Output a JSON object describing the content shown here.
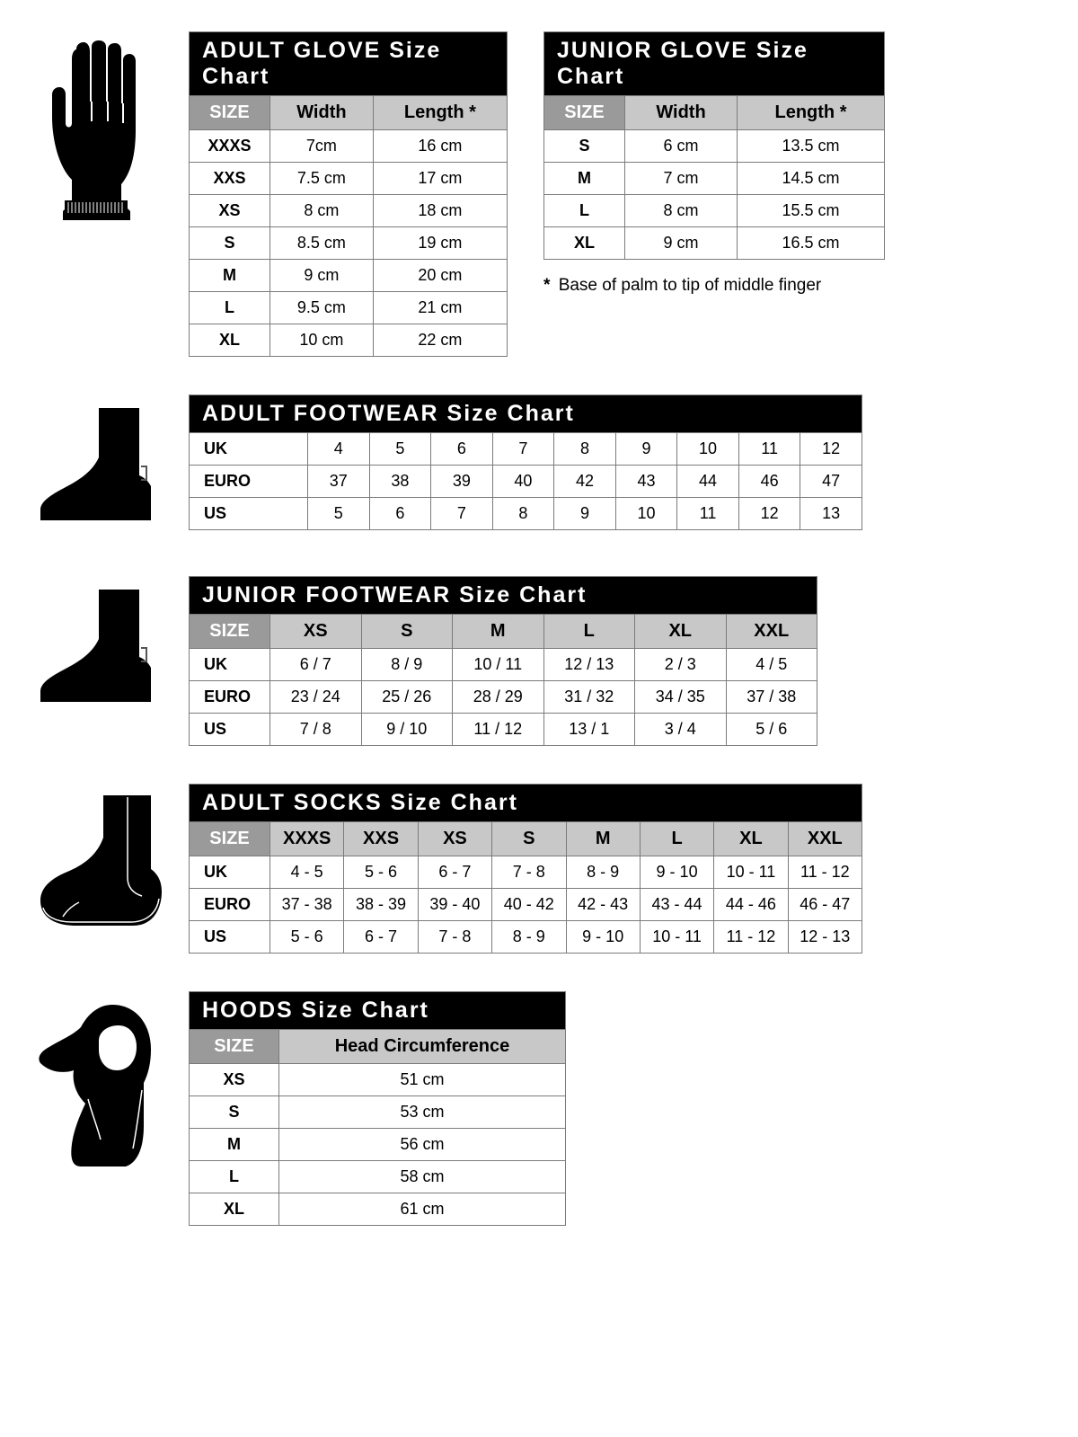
{
  "adult_glove": {
    "title": "ADULT GLOVE Size Chart",
    "headers": [
      "SIZE",
      "Width",
      "Length *"
    ],
    "rows": [
      [
        "XXXS",
        "7cm",
        "16 cm"
      ],
      [
        "XXS",
        "7.5 cm",
        "17 cm"
      ],
      [
        "XS",
        "8 cm",
        "18 cm"
      ],
      [
        "S",
        "8.5 cm",
        "19 cm"
      ],
      [
        "M",
        "9 cm",
        "20 cm"
      ],
      [
        "L",
        "9.5 cm",
        "21 cm"
      ],
      [
        "XL",
        "10 cm",
        "22 cm"
      ]
    ]
  },
  "junior_glove": {
    "title": "JUNIOR GLOVE Size Chart",
    "headers": [
      "SIZE",
      "Width",
      "Length *"
    ],
    "rows": [
      [
        "S",
        "6 cm",
        "13.5 cm"
      ],
      [
        "M",
        "7 cm",
        "14.5 cm"
      ],
      [
        "L",
        "8 cm",
        "15.5 cm"
      ],
      [
        "XL",
        "9 cm",
        "16.5 cm"
      ]
    ]
  },
  "footnote": "Base of palm to tip of middle finger",
  "adult_footwear": {
    "title": "ADULT FOOTWEAR Size Chart",
    "rows": [
      [
        "UK",
        "4",
        "5",
        "6",
        "7",
        "8",
        "9",
        "10",
        "11",
        "12"
      ],
      [
        "EURO",
        "37",
        "38",
        "39",
        "40",
        "42",
        "43",
        "44",
        "46",
        "47"
      ],
      [
        "US",
        "5",
        "6",
        "7",
        "8",
        "9",
        "10",
        "11",
        "12",
        "13"
      ]
    ]
  },
  "junior_footwear": {
    "title": "JUNIOR FOOTWEAR Size Chart",
    "headers": [
      "SIZE",
      "XS",
      "S",
      "M",
      "L",
      "XL",
      "XXL"
    ],
    "rows": [
      [
        "UK",
        "6 / 7",
        "8 / 9",
        "10 / 11",
        "12 / 13",
        "2 / 3",
        "4 / 5"
      ],
      [
        "EURO",
        "23 / 24",
        "25 / 26",
        "28 / 29",
        "31 / 32",
        "34 / 35",
        "37 / 38"
      ],
      [
        "US",
        "7 / 8",
        "9 / 10",
        "11 / 12",
        "13 / 1",
        "3 / 4",
        "5 / 6"
      ]
    ]
  },
  "adult_socks": {
    "title": "ADULT SOCKS Size Chart",
    "headers": [
      "SIZE",
      "XXXS",
      "XXS",
      "XS",
      "S",
      "M",
      "L",
      "XL",
      "XXL"
    ],
    "rows": [
      [
        "UK",
        "4 - 5",
        "5 - 6",
        "6 - 7",
        "7 - 8",
        "8 - 9",
        "9 - 10",
        "10 - 11",
        "11 - 12"
      ],
      [
        "EURO",
        "37 - 38",
        "38 - 39",
        "39 - 40",
        "40 - 42",
        "42 - 43",
        "43 - 44",
        "44 - 46",
        "46 - 47"
      ],
      [
        "US",
        "5 - 6",
        "6 - 7",
        "7 - 8",
        "8 - 9",
        "9 - 10",
        "10 - 11",
        "11 - 12",
        "12 - 13"
      ]
    ]
  },
  "hoods": {
    "title": "HOODS Size Chart",
    "headers": [
      "SIZE",
      "Head Circumference"
    ],
    "rows": [
      [
        "XS",
        "51 cm"
      ],
      [
        "S",
        "53 cm"
      ],
      [
        "M",
        "56 cm"
      ],
      [
        "L",
        "58 cm"
      ],
      [
        "XL",
        "61 cm"
      ]
    ]
  },
  "colors": {
    "title_bg": "#000000",
    "title_fg": "#ffffff",
    "header_dark": "#9a9a9a",
    "header_light": "#c8c8c8",
    "border": "#7b7b7b"
  }
}
